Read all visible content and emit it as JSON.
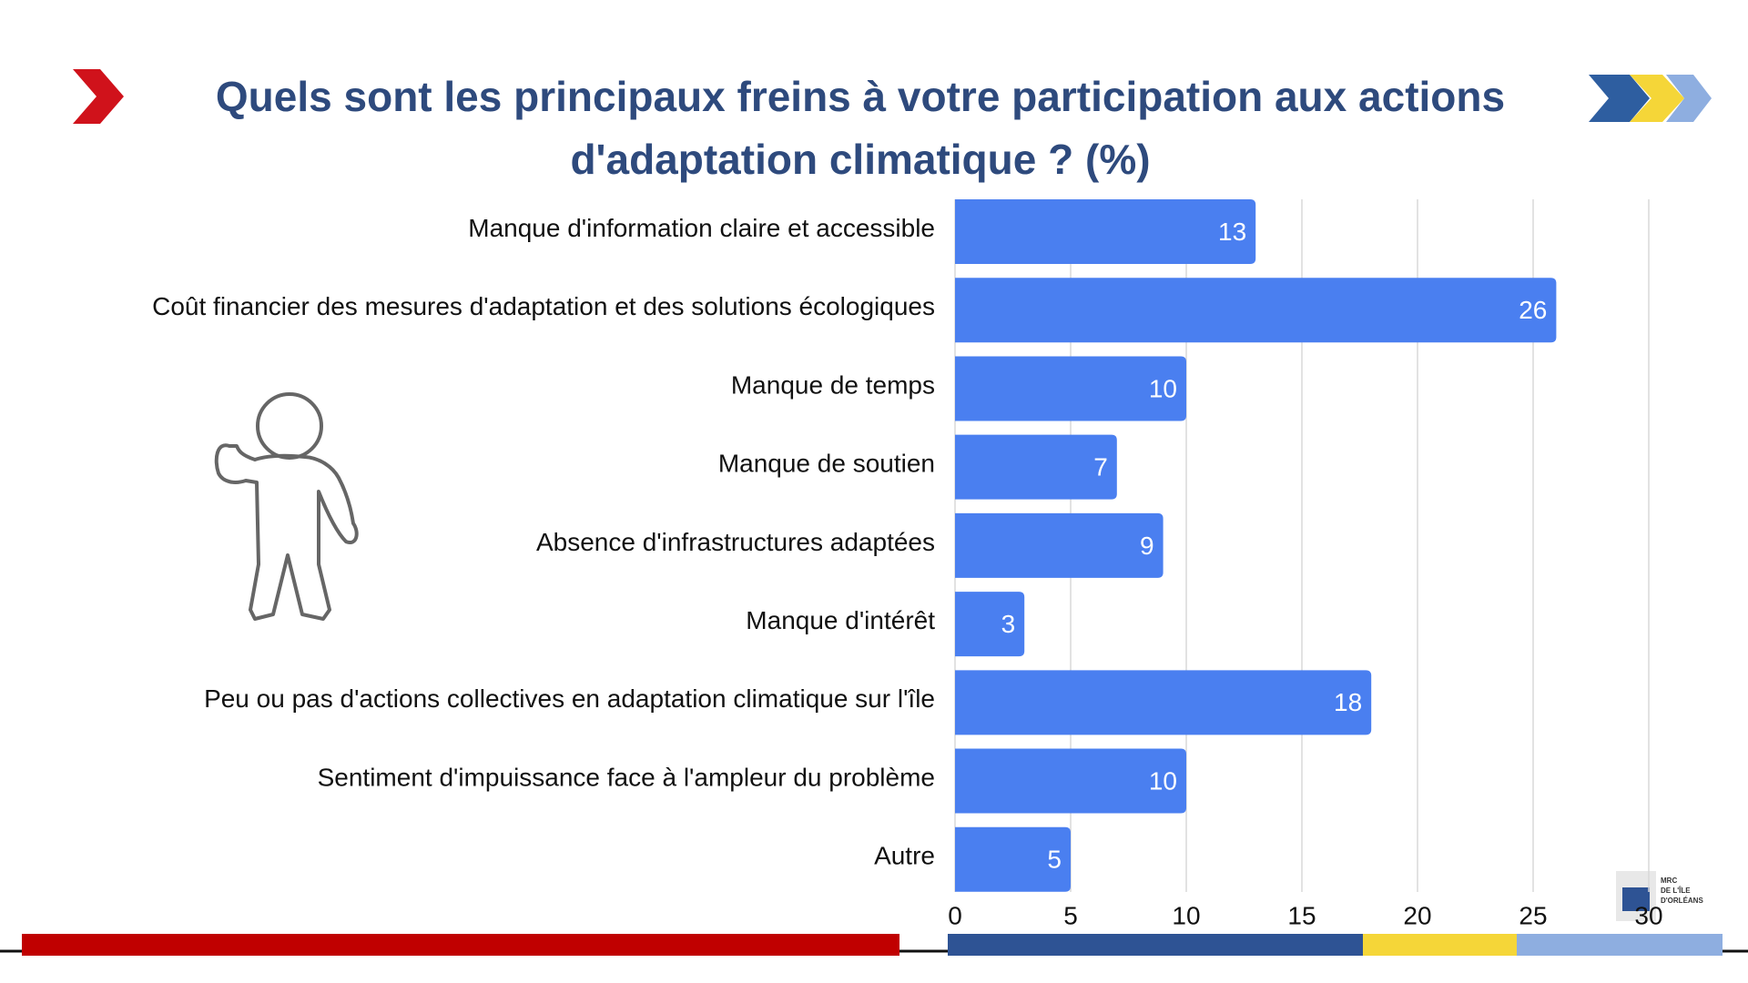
{
  "chart_data": {
    "type": "bar",
    "orientation": "horizontal",
    "title": "Quels sont les principaux freins à votre participation aux actions d'adaptation climatique ? (%)",
    "categories": [
      "Manque d'information claire et accessible",
      "Coût financier des mesures d'adaptation et des solutions écologiques",
      "Manque de temps",
      "Manque de soutien",
      "Absence d'infrastructures adaptées",
      "Manque d'intérêt",
      "Peu ou pas d'actions collectives en adaptation climatique sur l'île",
      "Sentiment d'impuissance face à l'ampleur du problème",
      "Autre"
    ],
    "values": [
      13,
      26,
      10,
      7,
      9,
      3,
      18,
      10,
      5
    ],
    "color": "#4a7ff0",
    "xlim": [
      0,
      30
    ],
    "xticks": [
      0,
      5,
      10,
      15,
      20,
      25,
      30
    ],
    "grid": true
  },
  "logo": [
    "MRC",
    "DE L'ÎLE",
    "D'ORLÉANS"
  ]
}
